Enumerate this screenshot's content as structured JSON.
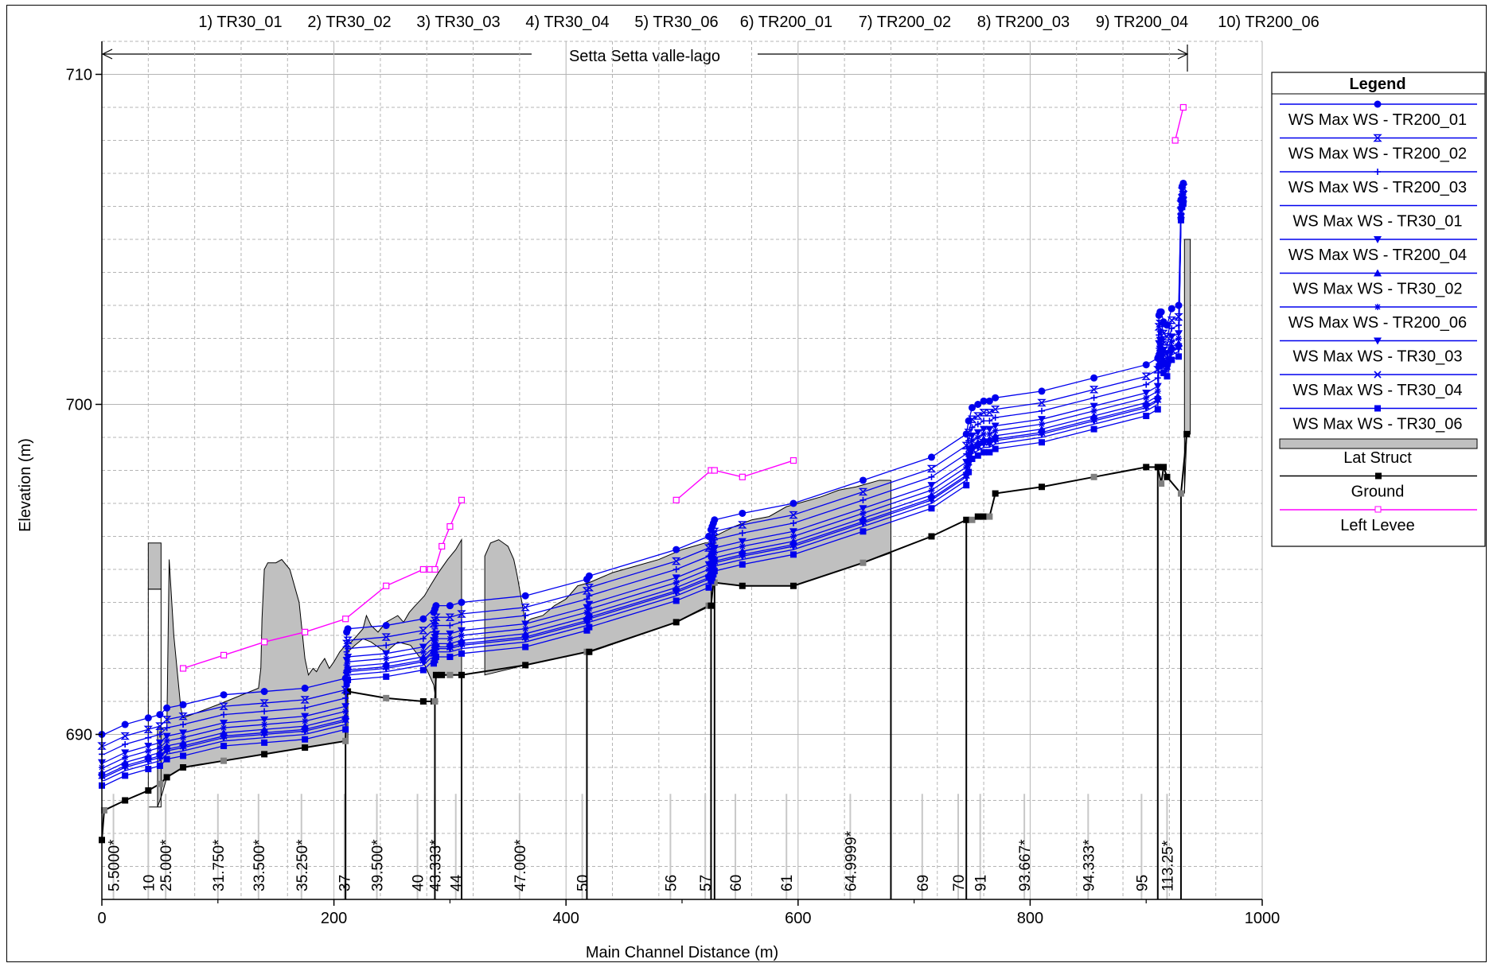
{
  "plan_list": [
    "1) TR30_01",
    "2) TR30_02",
    "3) TR30_03",
    "4) TR30_04",
    "5) TR30_06",
    "6) TR200_01",
    "7) TR200_02",
    "8) TR200_03",
    "9) TR200_04",
    "10) TR200_06"
  ],
  "reach_label": "Setta Setta valle-lago",
  "legend_title": "Legend",
  "colors": {
    "ws": "#0000ee",
    "ground": "#000000",
    "levee": "#ff00ff",
    "lat_struct_fill": "#c0c0c0",
    "grid": "#b4b4b4"
  },
  "chart_data": {
    "type": "line",
    "xlabel": "Main Channel Distance (m)",
    "ylabel": "Elevation (m)",
    "xlim": [
      0,
      1000
    ],
    "ylim": [
      685,
      711
    ],
    "x_ticks": [
      0,
      200,
      400,
      600,
      800,
      1000
    ],
    "y_ticks": [
      690,
      700,
      710
    ],
    "grid": true,
    "legend_position": "right",
    "stations": [
      {
        "x": 10,
        "label": "5.5000*"
      },
      {
        "x": 40,
        "label": "10"
      },
      {
        "x": 55,
        "label": "25.000*"
      },
      {
        "x": 100,
        "label": "31.750*"
      },
      {
        "x": 135,
        "label": "33.500*"
      },
      {
        "x": 172,
        "label": "35.250*"
      },
      {
        "x": 209,
        "label": "37"
      },
      {
        "x": 237,
        "label": "39.500*"
      },
      {
        "x": 272,
        "label": "40"
      },
      {
        "x": 287,
        "label": "43.333*"
      },
      {
        "x": 305,
        "label": "44"
      },
      {
        "x": 360,
        "label": "47.000*"
      },
      {
        "x": 414,
        "label": "50"
      },
      {
        "x": 490,
        "label": "56"
      },
      {
        "x": 520,
        "label": "57"
      },
      {
        "x": 546,
        "label": "60"
      },
      {
        "x": 590,
        "label": "61"
      },
      {
        "x": 645,
        "label": "64.9999*"
      },
      {
        "x": 707,
        "label": "69"
      },
      {
        "x": 738,
        "label": "70"
      },
      {
        "x": 757,
        "label": "91"
      },
      {
        "x": 795,
        "label": "93.667*"
      },
      {
        "x": 850,
        "label": "94.333*"
      },
      {
        "x": 896,
        "label": "95"
      },
      {
        "x": 918,
        "label": "113.25*"
      }
    ],
    "ground": {
      "name": "Ground",
      "x": [
        0,
        2,
        20,
        40,
        50,
        56,
        70,
        105,
        140,
        175,
        210,
        211,
        212,
        245,
        277,
        286,
        287,
        288,
        293,
        300,
        310,
        365,
        418,
        420,
        495,
        523,
        525,
        527,
        528,
        552,
        596,
        656,
        715,
        745,
        750,
        755,
        760,
        765,
        770,
        810,
        855,
        900,
        910,
        913,
        915,
        918,
        930,
        935
      ],
      "y": [
        686.8,
        687.7,
        688.0,
        688.3,
        688.5,
        688.7,
        689.0,
        689.2,
        689.4,
        689.6,
        689.8,
        691.3,
        691.3,
        691.1,
        691.0,
        691.0,
        691.0,
        691.8,
        691.8,
        691.8,
        691.8,
        692.1,
        692.5,
        692.5,
        693.4,
        693.9,
        693.9,
        694.6,
        694.6,
        694.5,
        694.5,
        695.2,
        696.0,
        696.5,
        696.5,
        696.6,
        696.6,
        696.6,
        697.3,
        697.5,
        697.8,
        698.1,
        698.1,
        697.6,
        698.1,
        697.8,
        697.3,
        699.1
      ]
    },
    "left_levee": {
      "name": "Left Levee",
      "segments": [
        {
          "x": [
            70,
            105,
            140,
            175,
            210,
            245,
            277,
            283,
            287,
            293,
            300,
            310
          ],
          "y": [
            692.0,
            692.4,
            692.8,
            693.1,
            693.5,
            694.5,
            695.0,
            695.0,
            695.0,
            695.7,
            696.3,
            697.1
          ]
        },
        {
          "x": [
            495,
            525,
            528,
            552,
            596
          ],
          "y": [
            697.1,
            698.0,
            698.0,
            697.8,
            698.3
          ]
        },
        {
          "x": [
            925,
            932
          ],
          "y": [
            708.0,
            709.0
          ]
        }
      ]
    },
    "lat_struct": {
      "name": "Lat Struct",
      "notes": "grey filled lateral structure outline",
      "outline": [
        [
          48,
          687.8
        ],
        [
          48,
          690.2
        ],
        [
          56,
          690.2
        ],
        [
          58,
          695.3
        ],
        [
          62,
          693.0
        ],
        [
          68,
          690.8
        ],
        [
          70,
          690.5
        ],
        [
          100,
          690.9
        ],
        [
          135,
          691.4
        ],
        [
          137,
          692.0
        ],
        [
          138,
          693.5
        ],
        [
          140,
          695.0
        ],
        [
          143,
          695.2
        ],
        [
          150,
          695.2
        ],
        [
          155,
          695.3
        ],
        [
          162,
          695.0
        ],
        [
          170,
          694.0
        ],
        [
          175,
          692.3
        ],
        [
          178,
          691.8
        ],
        [
          182,
          692.0
        ],
        [
          185,
          691.9
        ],
        [
          188,
          692.1
        ],
        [
          192,
          692.3
        ],
        [
          196,
          692.0
        ],
        [
          200,
          692.2
        ],
        [
          205,
          692.5
        ],
        [
          210,
          692.7
        ],
        [
          215,
          692.8
        ],
        [
          225,
          693.2
        ],
        [
          228,
          693.6
        ],
        [
          232,
          693.3
        ],
        [
          238,
          693.1
        ],
        [
          245,
          693.4
        ],
        [
          250,
          693.5
        ],
        [
          255,
          693.6
        ],
        [
          260,
          693.4
        ],
        [
          265,
          693.7
        ],
        [
          270,
          693.9
        ],
        [
          278,
          694.2
        ],
        [
          283,
          694.5
        ],
        [
          290,
          694.9
        ],
        [
          298,
          695.3
        ],
        [
          305,
          695.6
        ],
        [
          310,
          695.9
        ],
        [
          310,
          691.8
        ],
        [
          300,
          691.8
        ],
        [
          288,
          691.8
        ],
        [
          288,
          691.0
        ],
        [
          286,
          691.5
        ],
        [
          277,
          692.2
        ],
        [
          266,
          692.7
        ],
        [
          255,
          692.8
        ],
        [
          245,
          692.5
        ],
        [
          240,
          692.6
        ],
        [
          232,
          692.8
        ],
        [
          225,
          692.9
        ],
        [
          218,
          692.7
        ],
        [
          212,
          692.5
        ],
        [
          212,
          689.8
        ],
        [
          175,
          689.6
        ],
        [
          140,
          689.4
        ],
        [
          105,
          689.2
        ],
        [
          70,
          689.0
        ],
        [
          56,
          688.7
        ],
        [
          52,
          688.2
        ]
      ],
      "second_outline": [
        [
          330,
          691.8
        ],
        [
          330,
          695.4
        ],
        [
          335,
          695.8
        ],
        [
          342,
          695.9
        ],
        [
          350,
          695.7
        ],
        [
          355,
          695.3
        ],
        [
          358,
          694.8
        ],
        [
          362,
          694.0
        ],
        [
          365,
          693.4
        ],
        [
          370,
          693.5
        ],
        [
          380,
          693.6
        ],
        [
          390,
          693.9
        ],
        [
          400,
          694.1
        ],
        [
          410,
          694.5
        ],
        [
          420,
          694.6
        ],
        [
          440,
          694.9
        ],
        [
          460,
          695.1
        ],
        [
          480,
          695.3
        ],
        [
          500,
          695.6
        ],
        [
          520,
          695.8
        ],
        [
          525,
          695.8
        ],
        [
          525,
          693.9
        ],
        [
          495,
          693.4
        ],
        [
          418,
          692.5
        ],
        [
          365,
          692.1
        ],
        [
          330,
          691.8
        ]
      ],
      "third_outline": [
        [
          528,
          694.6
        ],
        [
          528,
          696.0
        ],
        [
          545,
          696.3
        ],
        [
          560,
          696.5
        ],
        [
          575,
          696.6
        ],
        [
          590,
          696.9
        ],
        [
          600,
          697.0
        ],
        [
          610,
          697.1
        ],
        [
          620,
          697.2
        ],
        [
          635,
          697.4
        ],
        [
          650,
          697.5
        ],
        [
          660,
          697.6
        ],
        [
          670,
          697.7
        ],
        [
          680,
          697.7
        ],
        [
          680,
          695.5
        ],
        [
          656,
          695.2
        ],
        [
          596,
          694.5
        ],
        [
          552,
          694.5
        ],
        [
          528,
          694.6
        ]
      ],
      "fourth_outline": [
        [
          933,
          697.3
        ],
        [
          933,
          705.0
        ],
        [
          938,
          705.0
        ],
        [
          938,
          699.1
        ],
        [
          935,
          699.1
        ]
      ],
      "box": {
        "x0": 40,
        "x1": 51,
        "y0": 694.4,
        "y1": 695.8
      }
    },
    "ws_x": [
      0,
      1,
      2,
      20,
      40,
      50,
      56,
      70,
      105,
      140,
      175,
      210,
      211,
      212,
      245,
      277,
      283,
      286,
      287,
      288,
      293,
      300,
      310,
      365,
      418,
      420,
      495,
      523,
      525,
      526,
      527,
      528,
      552,
      596,
      656,
      715,
      745,
      747,
      750,
      755,
      760,
      765,
      770,
      810,
      855,
      900,
      910,
      911,
      912,
      913,
      915,
      918,
      922,
      928,
      930,
      931,
      932
    ],
    "series": [
      {
        "name": "WS  Max WS - TR200_01",
        "marker": "circle",
        "offset": 0.0
      },
      {
        "name": "WS  Max WS - TR200_02",
        "marker": "hourglass",
        "offset": -0.35
      },
      {
        "name": "WS  Max WS - TR200_03",
        "marker": "plus",
        "offset": -0.6
      },
      {
        "name": "WS  Max WS - TR30_01",
        "marker": "none",
        "offset": -1.4
      },
      {
        "name": "WS  Max WS - TR200_04",
        "marker": "tri-down-star",
        "offset": -0.85
      },
      {
        "name": "WS  Max WS - TR30_02",
        "marker": "triangle",
        "offset": -1.15
      },
      {
        "name": "WS  Max WS - TR200_06",
        "marker": "star",
        "offset": -1.0
      },
      {
        "name": "WS  Max WS - TR30_03",
        "marker": "tri-down",
        "offset": -1.3
      },
      {
        "name": "WS  Max WS - TR30_04",
        "marker": "x",
        "offset": -1.25
      },
      {
        "name": "WS  Max WS - TR30_06",
        "marker": "square",
        "offset": -1.55
      }
    ],
    "ws_base_y": [
      690.0,
      690.0,
      690.0,
      690.3,
      690.5,
      690.6,
      690.8,
      690.9,
      691.2,
      691.3,
      691.4,
      691.7,
      693.1,
      693.2,
      693.3,
      693.5,
      693.7,
      693.7,
      693.8,
      693.9,
      693.9,
      693.9,
      694.0,
      694.2,
      694.7,
      694.8,
      695.6,
      696.0,
      696.2,
      696.3,
      696.4,
      696.5,
      696.7,
      697.0,
      697.7,
      698.4,
      699.1,
      699.5,
      699.9,
      700.0,
      700.1,
      700.1,
      700.2,
      700.4,
      700.8,
      701.2,
      701.4,
      702.7,
      702.8,
      702.8,
      702.5,
      702.4,
      702.9,
      703.0,
      706.2,
      706.6,
      706.7
    ],
    "legend": [
      "WS  Max WS - TR200_01",
      "WS  Max WS - TR200_02",
      "WS  Max WS - TR200_03",
      "WS  Max WS - TR30_01",
      "WS  Max WS - TR200_04",
      "WS  Max WS - TR30_02",
      "WS  Max WS - TR200_06",
      "WS  Max WS - TR30_03",
      "WS  Max WS - TR30_04",
      "WS  Max WS - TR30_06",
      "Lat Struct",
      "Ground",
      "Left Levee"
    ]
  }
}
